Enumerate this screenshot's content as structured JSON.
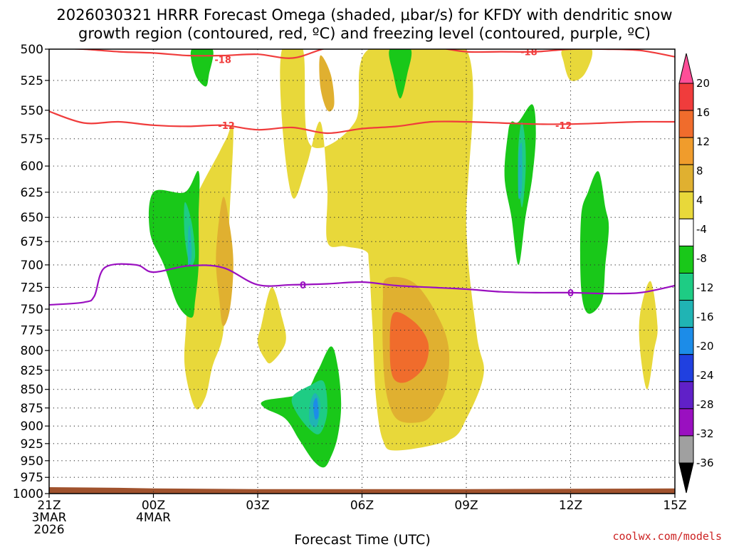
{
  "chart_data": {
    "type": "heatmap",
    "title_line1": "2026030321 HRRR Forecast Omega (shaded, μbar/s) for KFDY with dendritic snow",
    "title_line2": "growth region (contoured, red, ºC) and freezing level (contoured, purple, ºC)",
    "xlabel": "Forecast Time (UTC)",
    "credit": "coolwx.com/models",
    "y_axis": {
      "unit": "mb",
      "range": [
        1000,
        500
      ],
      "ticks": [
        "500",
        "525",
        "550",
        "575",
        "600",
        "625",
        "650",
        "675",
        "700",
        "725",
        "750",
        "775",
        "800",
        "825",
        "850",
        "875",
        "900",
        "925",
        "950",
        "975",
        "1000"
      ]
    },
    "x_axis": {
      "unit": "forecast hour",
      "range": [
        0,
        18
      ],
      "ticks": [
        {
          "hour": 0,
          "lines": [
            "21Z",
            "3MAR",
            "2026"
          ]
        },
        {
          "hour": 3,
          "lines": [
            "00Z",
            "4MAR"
          ]
        },
        {
          "hour": 6,
          "lines": [
            "03Z"
          ]
        },
        {
          "hour": 9,
          "lines": [
            "06Z"
          ]
        },
        {
          "hour": 12,
          "lines": [
            "09Z"
          ]
        },
        {
          "hour": 15,
          "lines": [
            "12Z"
          ]
        },
        {
          "hour": 18,
          "lines": [
            "15Z"
          ]
        }
      ]
    },
    "colorbar": {
      "labels": [
        "20",
        "16",
        "12",
        "8",
        "4",
        "-4",
        "-8",
        "-12",
        "-16",
        "-20",
        "-24",
        "-28",
        "-32",
        "-36"
      ],
      "colors": [
        "#ff4e98",
        "#f03c3c",
        "#f06c2c",
        "#f09c2c",
        "#e0b030",
        "#e8d83a",
        "#ffffff",
        "#19c819",
        "#1ecc84",
        "#20b4b4",
        "#1c8ce8",
        "#2040e0",
        "#6020c8",
        "#9a10c0",
        "#a0a0a0",
        "#000000"
      ]
    },
    "shading": [
      {
        "level": 4,
        "color": "#e8d83a",
        "outline": [
          [
            6.7,
            500
          ],
          [
            7.3,
            500
          ],
          [
            7.5,
            580
          ],
          [
            8.8,
            560
          ],
          [
            9.2,
            500
          ],
          [
            12.0,
            500
          ],
          [
            12.0,
            660
          ],
          [
            12.3,
            780
          ],
          [
            12.5,
            830
          ],
          [
            12.0,
            890
          ],
          [
            11.5,
            920
          ],
          [
            10.0,
            935
          ],
          [
            9.6,
            920
          ],
          [
            9.4,
            860
          ],
          [
            9.3,
            770
          ],
          [
            9.2,
            700
          ],
          [
            9.1,
            685
          ],
          [
            8.5,
            680
          ],
          [
            8.0,
            675
          ],
          [
            8.0,
            620
          ],
          [
            7.8,
            560
          ],
          [
            7.4,
            600
          ],
          [
            7.0,
            630
          ],
          [
            6.7,
            560
          ]
        ]
      },
      {
        "level": 4,
        "color": "#e8d83a",
        "outline": [
          [
            4.9,
            587
          ],
          [
            5.1,
            575
          ],
          [
            5.3,
            565
          ],
          [
            5.2,
            640
          ],
          [
            5.1,
            710
          ],
          [
            5.0,
            780
          ],
          [
            4.7,
            820
          ],
          [
            4.5,
            860
          ],
          [
            4.2,
            875
          ],
          [
            3.9,
            820
          ],
          [
            3.95,
            760
          ],
          [
            4.0,
            680
          ],
          [
            4.1,
            640
          ]
        ]
      },
      {
        "level": 4,
        "color": "#e8d83a",
        "outline": [
          [
            6.1,
            770
          ],
          [
            6.4,
            725
          ],
          [
            6.7,
            760
          ],
          [
            6.8,
            790
          ],
          [
            6.4,
            815
          ],
          [
            6.2,
            810
          ],
          [
            6.0,
            790
          ]
        ]
      },
      {
        "level": 4,
        "color": "#e8d83a",
        "outline": [
          [
            14.8,
            500
          ],
          [
            15.6,
            500
          ],
          [
            15.4,
            520
          ],
          [
            15.0,
            525
          ],
          [
            14.8,
            510
          ]
        ]
      },
      {
        "level": 4,
        "color": "#e8d83a",
        "outline": [
          [
            17.0,
            755
          ],
          [
            17.3,
            718
          ],
          [
            17.5,
            770
          ],
          [
            17.4,
            800
          ],
          [
            17.2,
            850
          ],
          [
            17.0,
            800
          ]
        ]
      },
      {
        "level": 8,
        "color": "#e0b030",
        "outline": [
          [
            7.8,
            505
          ],
          [
            8.1,
            520
          ],
          [
            8.2,
            545
          ],
          [
            8.0,
            550
          ],
          [
            7.8,
            530
          ]
        ]
      },
      {
        "level": 8,
        "color": "#e0b030",
        "outline": [
          [
            9.7,
            715
          ],
          [
            10.5,
            720
          ],
          [
            11.2,
            760
          ],
          [
            11.5,
            800
          ],
          [
            11.4,
            850
          ],
          [
            11.0,
            885
          ],
          [
            10.6,
            895
          ],
          [
            10.0,
            890
          ],
          [
            9.7,
            855
          ],
          [
            9.6,
            800
          ],
          [
            9.6,
            740
          ]
        ]
      },
      {
        "level": 8,
        "color": "#e0b030",
        "outline": [
          [
            5.0,
            630
          ],
          [
            5.2,
            660
          ],
          [
            5.3,
            700
          ],
          [
            5.2,
            750
          ],
          [
            5.0,
            770
          ],
          [
            4.9,
            740
          ],
          [
            4.8,
            690
          ]
        ]
      },
      {
        "level": 12,
        "color": "#f06c2c",
        "outline": [
          [
            9.9,
            755
          ],
          [
            10.5,
            765
          ],
          [
            10.9,
            790
          ],
          [
            10.8,
            820
          ],
          [
            10.3,
            840
          ],
          [
            9.9,
            835
          ],
          [
            9.8,
            800
          ]
        ]
      },
      {
        "level": -4,
        "color": "#19c819",
        "outline": [
          [
            3.9,
            625
          ],
          [
            4.3,
            605
          ],
          [
            4.3,
            650
          ],
          [
            4.3,
            700
          ],
          [
            4.2,
            740
          ],
          [
            4.1,
            760
          ],
          [
            3.7,
            745
          ],
          [
            3.3,
            700
          ],
          [
            2.9,
            665
          ],
          [
            3.0,
            625
          ]
        ]
      },
      {
        "level": -4,
        "color": "#19c819",
        "outline": [
          [
            6.2,
            865
          ],
          [
            7.3,
            855
          ],
          [
            7.7,
            828
          ],
          [
            8.1,
            795
          ],
          [
            8.3,
            820
          ],
          [
            8.4,
            870
          ],
          [
            8.3,
            915
          ],
          [
            8.1,
            945
          ],
          [
            7.9,
            960
          ],
          [
            7.6,
            950
          ],
          [
            7.2,
            920
          ],
          [
            6.8,
            890
          ],
          [
            6.2,
            875
          ]
        ]
      },
      {
        "level": -4,
        "color": "#19c819",
        "outline": [
          [
            13.3,
            560
          ],
          [
            13.5,
            560
          ],
          [
            13.9,
            545
          ],
          [
            14.0,
            570
          ],
          [
            13.9,
            610
          ],
          [
            13.7,
            650
          ],
          [
            13.5,
            700
          ],
          [
            13.3,
            650
          ],
          [
            13.1,
            610
          ],
          [
            13.2,
            570
          ]
        ]
      },
      {
        "level": -4,
        "color": "#19c819",
        "outline": [
          [
            15.5,
            625
          ],
          [
            15.8,
            605
          ],
          [
            16.0,
            640
          ],
          [
            16.1,
            660
          ],
          [
            16.0,
            700
          ],
          [
            15.9,
            740
          ],
          [
            15.5,
            755
          ],
          [
            15.3,
            725
          ],
          [
            15.3,
            650
          ]
        ]
      },
      {
        "level": -4,
        "color": "#19c819",
        "outline": [
          [
            4.1,
            500
          ],
          [
            4.7,
            500
          ],
          [
            4.6,
            520
          ],
          [
            4.5,
            530
          ],
          [
            4.2,
            520
          ]
        ]
      },
      {
        "level": -4,
        "color": "#19c819",
        "outline": [
          [
            9.8,
            500
          ],
          [
            10.4,
            500
          ],
          [
            10.3,
            520
          ],
          [
            10.1,
            540
          ],
          [
            9.9,
            520
          ]
        ]
      },
      {
        "level": -8,
        "color": "#1ecc84",
        "outline": [
          [
            3.9,
            635
          ],
          [
            4.1,
            655
          ],
          [
            4.2,
            690
          ],
          [
            4.05,
            700
          ],
          [
            3.9,
            670
          ]
        ]
      },
      {
        "level": -8,
        "color": "#1ecc84",
        "outline": [
          [
            7.0,
            860
          ],
          [
            7.5,
            845
          ],
          [
            7.9,
            840
          ],
          [
            8.0,
            880
          ],
          [
            7.8,
            910
          ],
          [
            7.5,
            905
          ],
          [
            7.1,
            880
          ]
        ]
      },
      {
        "level": -8,
        "color": "#1ecc84",
        "outline": [
          [
            13.6,
            560
          ],
          [
            13.7,
            580
          ],
          [
            13.7,
            610
          ],
          [
            13.6,
            640
          ],
          [
            13.5,
            610
          ],
          [
            13.5,
            580
          ]
        ]
      },
      {
        "level": -12,
        "color": "#20b4b4",
        "outline": [
          [
            4.0,
            665
          ],
          [
            4.05,
            660
          ],
          [
            4.1,
            690
          ],
          [
            4.0,
            700
          ]
        ]
      },
      {
        "level": -12,
        "color": "#20b4b4",
        "outline": [
          [
            7.5,
            870
          ],
          [
            7.65,
            855
          ],
          [
            7.8,
            870
          ],
          [
            7.7,
            900
          ],
          [
            7.5,
            895
          ]
        ]
      },
      {
        "level": -12,
        "color": "#20b4b4",
        "outline": [
          [
            13.5,
            590
          ],
          [
            13.6,
            580
          ],
          [
            13.6,
            620
          ],
          [
            13.5,
            630
          ]
        ]
      },
      {
        "level": -16,
        "color": "#1c8ce8",
        "outline": [
          [
            7.6,
            870
          ],
          [
            7.7,
            862
          ],
          [
            7.75,
            885
          ],
          [
            7.65,
            890
          ]
        ]
      }
    ],
    "contours": [
      {
        "name": "dgz-minus-18",
        "label": "-18",
        "color": "#f03c3c",
        "label_at": [
          5.0,
          508
        ],
        "label2_at": [
          13.8,
          502
        ],
        "points": [
          [
            0,
            499
          ],
          [
            1,
            500
          ],
          [
            2,
            502
          ],
          [
            3,
            503
          ],
          [
            4,
            505
          ],
          [
            5,
            505
          ],
          [
            6,
            504
          ],
          [
            7,
            507
          ],
          [
            8,
            499
          ],
          [
            9,
            496
          ],
          [
            10,
            496
          ],
          [
            11,
            498
          ],
          [
            12,
            502
          ],
          [
            13,
            502
          ],
          [
            14,
            502
          ],
          [
            15,
            500
          ],
          [
            16,
            500
          ],
          [
            17,
            501
          ],
          [
            18,
            506
          ]
        ]
      },
      {
        "name": "dgz-minus-12",
        "label": "-12",
        "color": "#f03c3c",
        "label_at": [
          5.1,
          563
        ],
        "label2_at": [
          14.8,
          563
        ],
        "points": [
          [
            0,
            551
          ],
          [
            1,
            561
          ],
          [
            2,
            560
          ],
          [
            3,
            563
          ],
          [
            4,
            564
          ],
          [
            5,
            563
          ],
          [
            6,
            567
          ],
          [
            7,
            565
          ],
          [
            8,
            570
          ],
          [
            9,
            566
          ],
          [
            10,
            564
          ],
          [
            11,
            560
          ],
          [
            12,
            560
          ],
          [
            13,
            561
          ],
          [
            14,
            562
          ],
          [
            15,
            562
          ],
          [
            16,
            561
          ],
          [
            17,
            560
          ],
          [
            18,
            560
          ]
        ]
      },
      {
        "name": "freezing-level",
        "label": "0",
        "color": "#9a10c0",
        "label_at": [
          7.3,
          722
        ],
        "label2_at": [
          15.0,
          731
        ],
        "points": [
          [
            0,
            745
          ],
          [
            1,
            742
          ],
          [
            1.3,
            735
          ],
          [
            1.6,
            703
          ],
          [
            2.5,
            700
          ],
          [
            3,
            708
          ],
          [
            4,
            701
          ],
          [
            5,
            703
          ],
          [
            6,
            722
          ],
          [
            7,
            722
          ],
          [
            8,
            721
          ],
          [
            9,
            719
          ],
          [
            10,
            723
          ],
          [
            11,
            725
          ],
          [
            12,
            727
          ],
          [
            13,
            730
          ],
          [
            14,
            731
          ],
          [
            15,
            731
          ],
          [
            16,
            732
          ],
          [
            17,
            731
          ],
          [
            18,
            723
          ]
        ]
      }
    ],
    "terrain": {
      "color": "#a0522d",
      "top_mb": [
        [
          0,
          990
        ],
        [
          2,
          991
        ],
        [
          3,
          992
        ],
        [
          6,
          993
        ],
        [
          12,
          993
        ],
        [
          18,
          992
        ]
      ]
    }
  }
}
